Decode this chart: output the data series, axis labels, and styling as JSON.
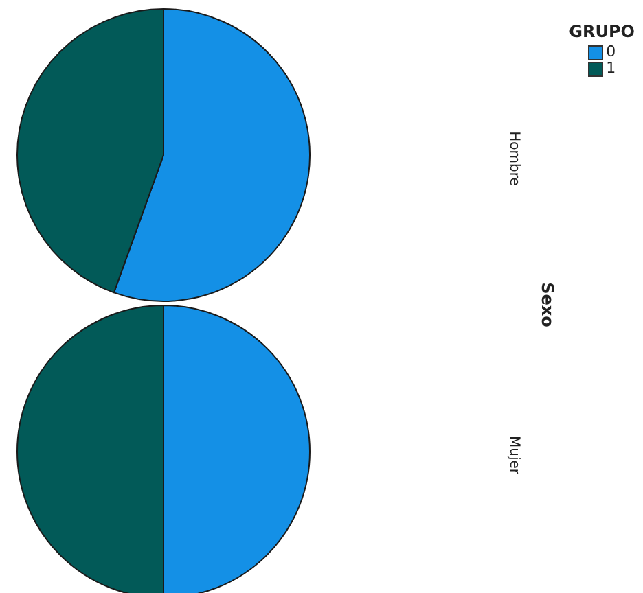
{
  "chart_data": {
    "type": "pie",
    "ylabel": "Sexo",
    "legend_title": "GRUPO",
    "legend": "top right",
    "categories": [
      "0",
      "1"
    ],
    "colors": [
      "#1490e6",
      "#025a58"
    ],
    "series": [
      {
        "name": "Hombre",
        "values": [
          55.5,
          44.5
        ]
      },
      {
        "name": "Mujer",
        "values": [
          50,
          50
        ]
      }
    ]
  }
}
